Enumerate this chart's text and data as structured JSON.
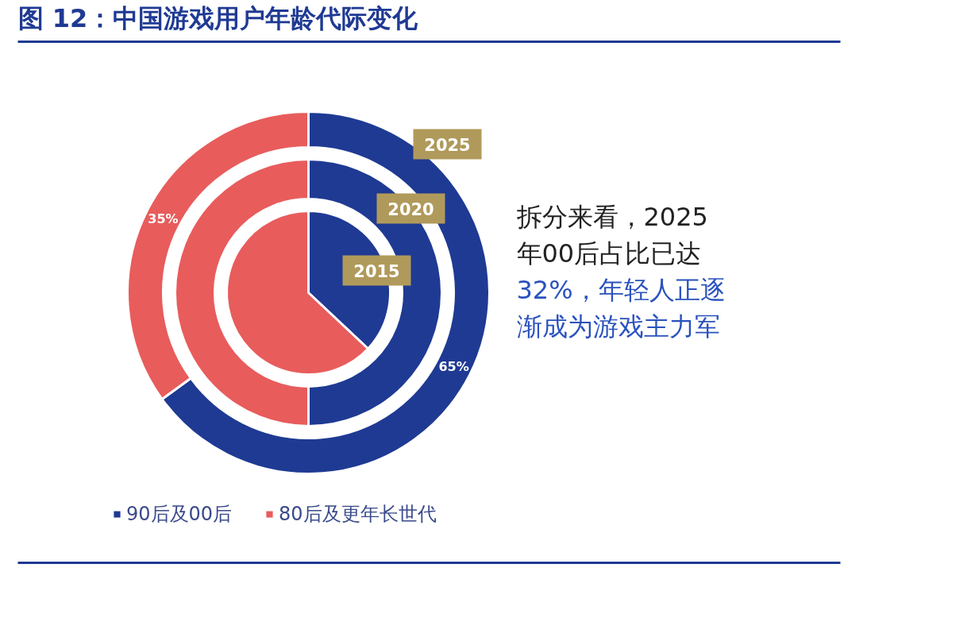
{
  "chart_data": {
    "type": "donut",
    "title": "图 12：中国游戏用户年龄代际变化",
    "categories": [
      "90后及00后",
      "80后及更年长世代"
    ],
    "colors": [
      "#1f3a93",
      "#e85c5c"
    ],
    "series": [
      {
        "name": "2015",
        "values": [
          37,
          63
        ]
      },
      {
        "name": "2020",
        "values": [
          50,
          50
        ]
      },
      {
        "name": "2025",
        "values": [
          65,
          35
        ],
        "value_labels": [
          "65%",
          "35%"
        ]
      }
    ],
    "annotations": [
      "拆分来看，2025年00后占比已达",
      "32%，年轻人正逐渐成为游戏主力军"
    ],
    "legend": "bottom left"
  }
}
